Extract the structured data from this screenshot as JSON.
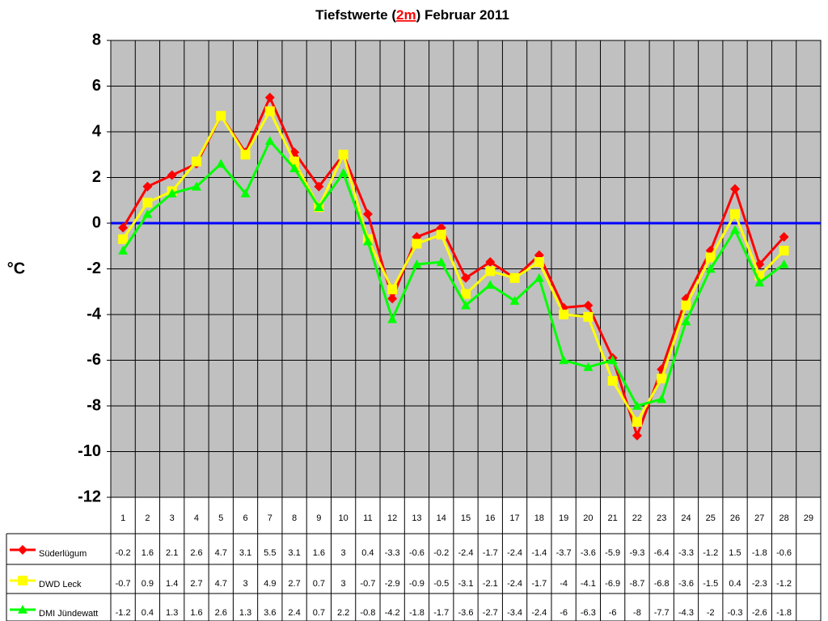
{
  "chart_data": {
    "type": "line",
    "title_parts": [
      "Tiefstwerte (",
      "2m",
      ") Februar 2011"
    ],
    "y_label": "°C",
    "categories": [
      "1",
      "2",
      "3",
      "4",
      "5",
      "6",
      "7",
      "8",
      "9",
      "10",
      "11",
      "12",
      "13",
      "14",
      "15",
      "16",
      "17",
      "18",
      "19",
      "20",
      "21",
      "22",
      "23",
      "24",
      "25",
      "26",
      "27",
      "28",
      "29"
    ],
    "series": [
      {
        "name": "Süderlügum",
        "color": "#ff0000",
        "marker": "diamond",
        "values": [
          -0.2,
          1.6,
          2.1,
          2.6,
          4.7,
          3.1,
          5.5,
          3.1,
          1.6,
          3,
          0.4,
          -3.3,
          -0.6,
          -0.2,
          -2.4,
          -1.7,
          -2.4,
          -1.4,
          -3.7,
          -3.6,
          -5.9,
          -9.3,
          -6.4,
          -3.3,
          -1.2,
          1.5,
          -1.8,
          -0.6,
          null
        ]
      },
      {
        "name": "DWD Leck",
        "color": "#ffff00",
        "marker": "square",
        "values": [
          -0.7,
          0.9,
          1.4,
          2.7,
          4.7,
          3,
          4.9,
          2.7,
          0.7,
          3,
          -0.7,
          -2.9,
          -0.9,
          -0.5,
          -3.1,
          -2.1,
          -2.4,
          -1.7,
          -4,
          -4.1,
          -6.9,
          -8.7,
          -6.8,
          -3.6,
          -1.5,
          0.4,
          -2.3,
          -1.2,
          null
        ]
      },
      {
        "name": "DMI Jündewatt",
        "color": "#00ff00",
        "marker": "triangle",
        "values": [
          -1.2,
          0.4,
          1.3,
          1.6,
          2.6,
          1.3,
          3.6,
          2.4,
          0.7,
          2.2,
          -0.8,
          -4.2,
          -1.8,
          -1.7,
          -3.6,
          -2.7,
          -3.4,
          -2.4,
          -6,
          -6.3,
          -6,
          -8,
          -7.7,
          -4.3,
          -2,
          -0.3,
          -2.6,
          -1.8,
          null
        ]
      }
    ],
    "ylim": [
      -12,
      8
    ],
    "yticks": [
      -12,
      -10,
      -8,
      -6,
      -4,
      -2,
      0,
      2,
      4,
      6,
      8
    ],
    "grid": true,
    "plot_background": "#c0c0c0",
    "zero_line_color": "#0000ff"
  }
}
